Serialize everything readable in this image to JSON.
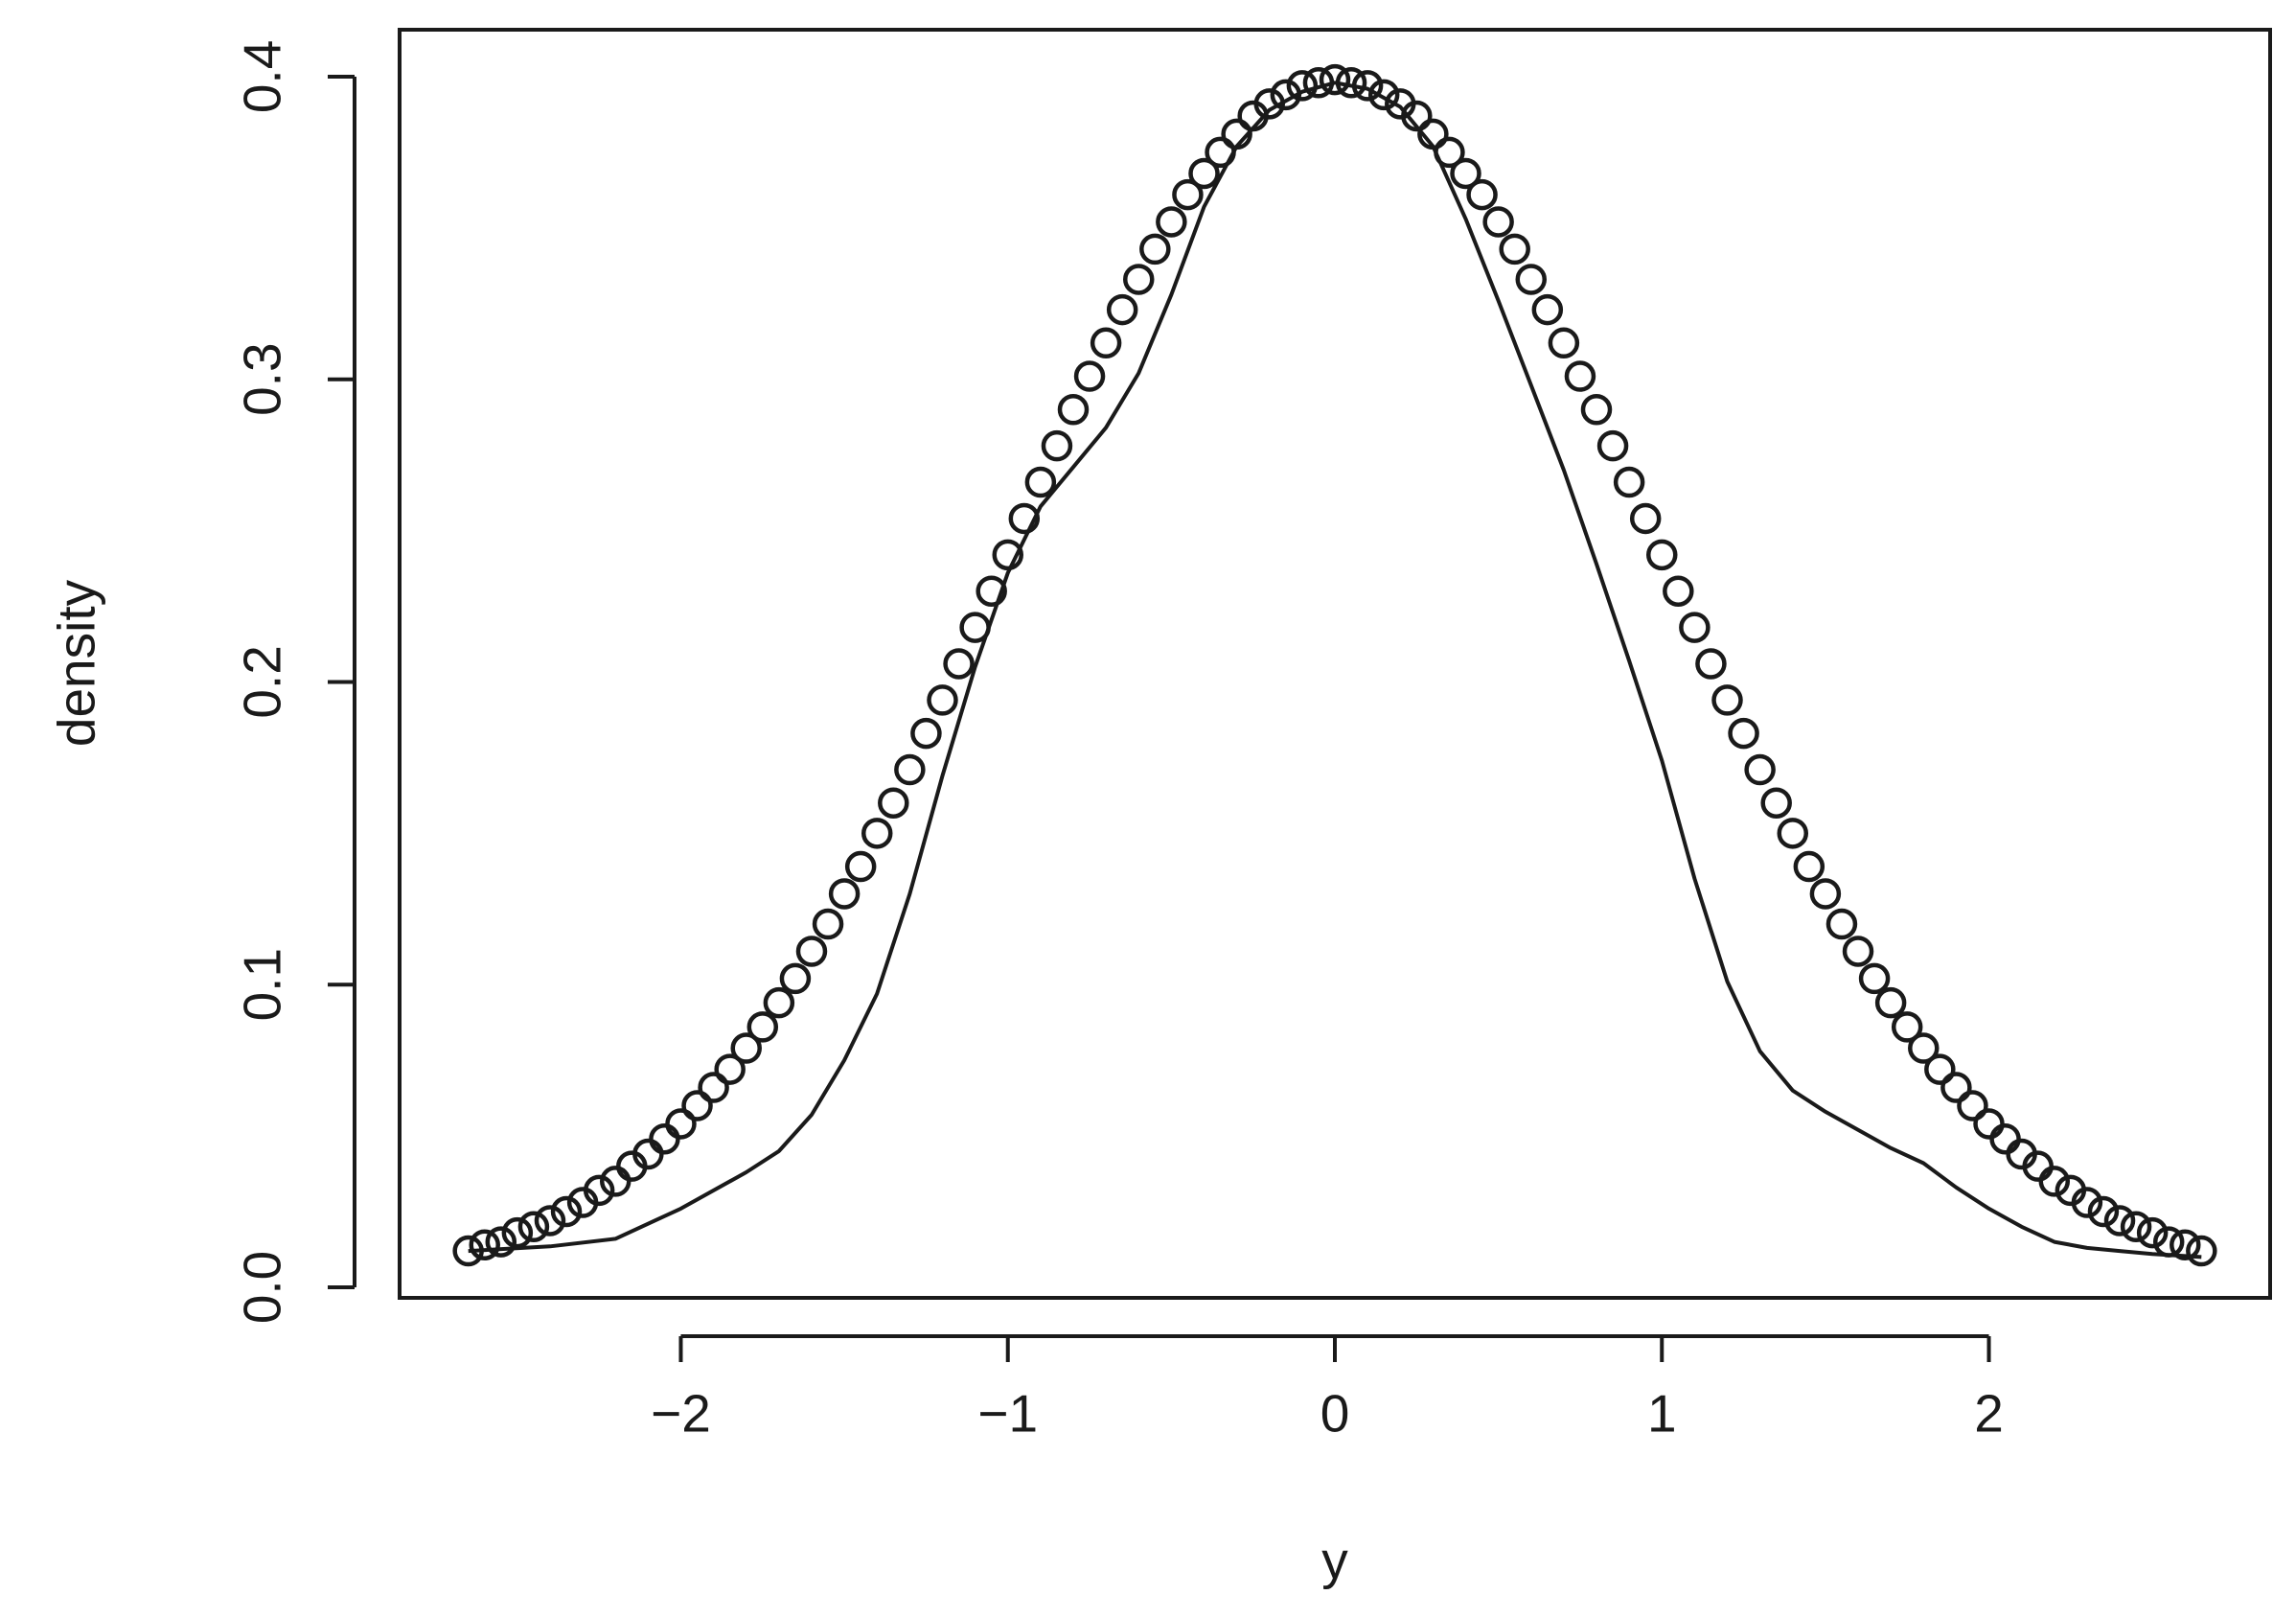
{
  "chart_data": {
    "type": "scatter",
    "xlabel": "y",
    "ylabel": "density",
    "xlim": [
      -2.86,
      2.86
    ],
    "ylim": [
      -0.0035,
      0.4155
    ],
    "xticks": [
      {
        "value": -2,
        "label": "−2"
      },
      {
        "value": -1,
        "label": "−1"
      },
      0,
      1,
      2
    ],
    "yticks": [
      {
        "value": 0,
        "label": "0.0"
      },
      0.1,
      0.2,
      0.3,
      0.4
    ],
    "series": [
      {
        "type": "scatter",
        "color": "#1a1a1a",
        "x": [
          -2.65,
          -2.6,
          -2.55,
          -2.5,
          -2.45,
          -2.4,
          -2.35,
          -2.3,
          -2.25,
          -2.2,
          -2.15,
          -2.1,
          -2.05,
          -2,
          -1.95,
          -1.9,
          -1.85,
          -1.8,
          -1.75,
          -1.7,
          -1.65,
          -1.6,
          -1.55,
          -1.5,
          -1.45,
          -1.4,
          -1.35,
          -1.3,
          -1.25,
          -1.2,
          -1.15,
          -1.1,
          -1.05,
          -1,
          -0.95,
          -0.9,
          -0.85,
          -0.8,
          -0.75,
          -0.7,
          -0.65,
          -0.6,
          -0.55,
          -0.5,
          -0.45,
          -0.4,
          -0.35,
          -0.3,
          -0.25,
          -0.2,
          -0.15,
          -0.1,
          -0.05,
          0,
          0.05,
          0.1,
          0.15,
          0.2,
          0.25,
          0.3,
          0.35,
          0.4,
          0.45,
          0.5,
          0.55,
          0.6,
          0.65,
          0.7,
          0.75,
          0.8,
          0.85,
          0.9,
          0.95,
          1,
          1.05,
          1.1,
          1.15,
          1.2,
          1.25,
          1.3,
          1.35,
          1.4,
          1.45,
          1.5,
          1.55,
          1.6,
          1.65,
          1.7,
          1.75,
          1.8,
          1.85,
          1.9,
          1.95,
          2,
          2.05,
          2.1,
          2.15,
          2.2,
          2.25,
          2.3,
          2.35,
          2.4,
          2.45,
          2.5,
          2.55,
          2.6,
          2.65
        ],
        "values": [
          0.012,
          0.014,
          0.015,
          0.018,
          0.02,
          0.022,
          0.025,
          0.028,
          0.032,
          0.035,
          0.04,
          0.044,
          0.049,
          0.054,
          0.06,
          0.066,
          0.072,
          0.079,
          0.086,
          0.094,
          0.102,
          0.111,
          0.12,
          0.13,
          0.139,
          0.15,
          0.16,
          0.171,
          0.183,
          0.194,
          0.206,
          0.218,
          0.23,
          0.242,
          0.254,
          0.266,
          0.278,
          0.29,
          0.301,
          0.312,
          0.323,
          0.333,
          0.343,
          0.352,
          0.361,
          0.368,
          0.375,
          0.381,
          0.387,
          0.391,
          0.394,
          0.397,
          0.398,
          0.399,
          0.398,
          0.397,
          0.394,
          0.391,
          0.387,
          0.381,
          0.375,
          0.368,
          0.361,
          0.352,
          0.343,
          0.333,
          0.323,
          0.312,
          0.301,
          0.29,
          0.278,
          0.266,
          0.254,
          0.242,
          0.23,
          0.218,
          0.206,
          0.194,
          0.183,
          0.171,
          0.16,
          0.15,
          0.139,
          0.13,
          0.12,
          0.111,
          0.102,
          0.094,
          0.086,
          0.079,
          0.072,
          0.066,
          0.06,
          0.054,
          0.049,
          0.044,
          0.04,
          0.035,
          0.032,
          0.028,
          0.025,
          0.022,
          0.02,
          0.018,
          0.015,
          0.014,
          0.012
        ]
      },
      {
        "type": "line",
        "color": "#1a1a1a",
        "x": [
          -2.65,
          -2.4,
          -2.2,
          -2,
          -1.8,
          -1.7,
          -1.6,
          -1.5,
          -1.4,
          -1.3,
          -1.2,
          -1.1,
          -1,
          -0.9,
          -0.8,
          -0.7,
          -0.6,
          -0.5,
          -0.4,
          -0.3,
          -0.2,
          -0.1,
          0,
          0.1,
          0.2,
          0.3,
          0.4,
          0.5,
          0.6,
          0.7,
          0.8,
          0.9,
          1,
          1.1,
          1.2,
          1.3,
          1.4,
          1.5,
          1.6,
          1.7,
          1.8,
          1.9,
          2,
          2.1,
          2.2,
          2.3,
          2.4,
          2.5,
          2.65
        ],
        "values": [
          0.012,
          0.0135,
          0.016,
          0.026,
          0.038,
          0.045,
          0.057,
          0.075,
          0.097,
          0.13,
          0.169,
          0.205,
          0.236,
          0.258,
          0.271,
          0.284,
          0.302,
          0.328,
          0.357,
          0.377,
          0.389,
          0.395,
          0.398,
          0.396,
          0.39,
          0.377,
          0.353,
          0.326,
          0.298,
          0.27,
          0.239,
          0.207,
          0.174,
          0.135,
          0.101,
          0.078,
          0.065,
          0.058,
          0.052,
          0.046,
          0.041,
          0.033,
          0.026,
          0.02,
          0.015,
          0.013,
          0.012,
          0.011,
          0.01
        ]
      }
    ]
  }
}
